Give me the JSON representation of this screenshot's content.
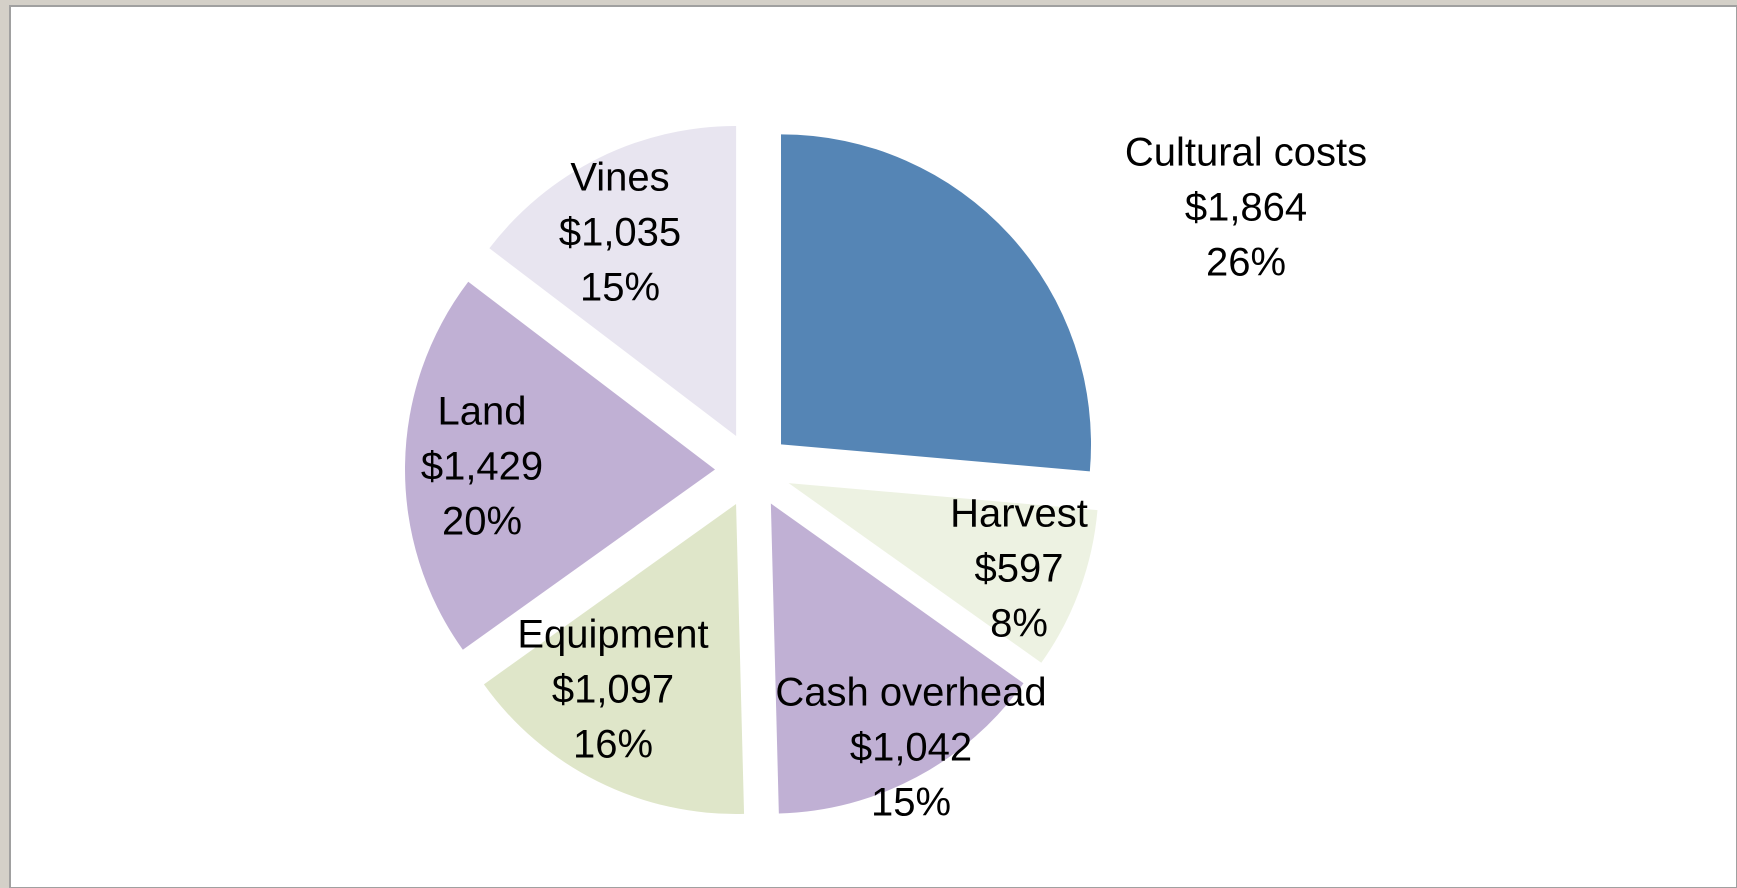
{
  "chart_data": {
    "type": "pie",
    "categories": [
      "Cultural costs",
      "Harvest",
      "Cash overhead",
      "Equipment",
      "Land",
      "Vines"
    ],
    "values": [
      1864,
      597,
      1042,
      1097,
      1429,
      1035
    ],
    "value_labels": [
      "$1,864",
      "$597",
      "$1,042",
      "$1,097",
      "$1,429",
      "$1,035"
    ],
    "percent_labels": [
      "26%",
      "8%",
      "15%",
      "16%",
      "20%",
      "15%"
    ],
    "colors": [
      "#5585b5",
      "#edf2e2",
      "#c0b0d4",
      "#dfe6c9",
      "#c0b0d4",
      "#e8e5f0"
    ]
  }
}
